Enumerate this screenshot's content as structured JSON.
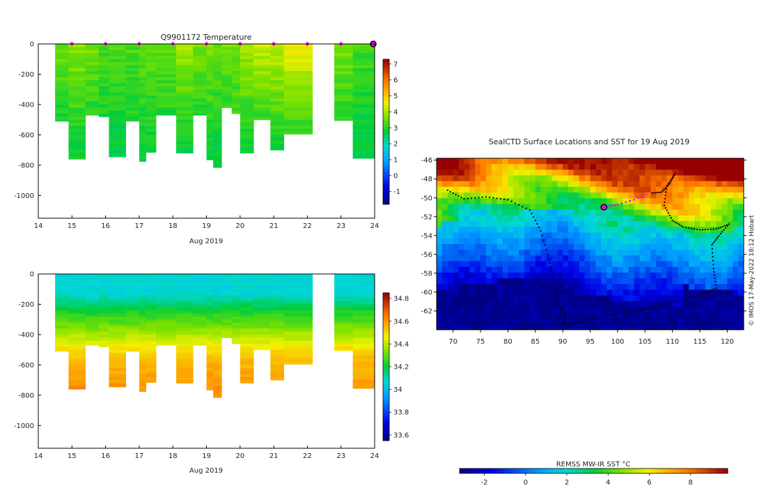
{
  "chart_data": [
    {
      "type": "heatmap",
      "title": "Q9901172  Temperature",
      "xlabel": "Aug 2019",
      "ylabel": "",
      "xlim": [
        14,
        24
      ],
      "ylim": [
        -1150,
        0
      ],
      "xticks": [
        "14",
        "15",
        "16",
        "17",
        "18",
        "19",
        "20",
        "21",
        "22",
        "23",
        "24"
      ],
      "yticks": [
        "0",
        "-200",
        "-400",
        "-600",
        "-800",
        "-1000"
      ],
      "colorbar": {
        "min": -1.8,
        "max": 7.3,
        "ticks": [
          "-1",
          "0",
          "1",
          "2",
          "3",
          "4",
          "5",
          "6",
          "7"
        ]
      },
      "marker_days": [
        15,
        16,
        17,
        18,
        19,
        20,
        21,
        22,
        23
      ],
      "profiles": [
        {
          "x0": 14.5,
          "x1": 14.9,
          "depth": 510,
          "t_top": 3.6,
          "t_bottom": 2.9
        },
        {
          "x0": 14.9,
          "x1": 15.4,
          "depth": 760,
          "t_top": 3.8,
          "t_bottom": 2.7
        },
        {
          "x0": 15.4,
          "x1": 15.8,
          "depth": 470,
          "t_top": 3.6,
          "t_bottom": 3.0
        },
        {
          "x0": 15.8,
          "x1": 16.1,
          "depth": 480,
          "t_top": 3.3,
          "t_bottom": 2.9
        },
        {
          "x0": 16.1,
          "x1": 16.6,
          "depth": 745,
          "t_top": 3.4,
          "t_bottom": 2.6
        },
        {
          "x0": 16.6,
          "x1": 17.0,
          "depth": 510,
          "t_top": 3.3,
          "t_bottom": 2.9
        },
        {
          "x0": 17.0,
          "x1": 17.2,
          "depth": 775,
          "t_top": 3.5,
          "t_bottom": 2.7
        },
        {
          "x0": 17.2,
          "x1": 17.5,
          "depth": 715,
          "t_top": 3.5,
          "t_bottom": 2.7
        },
        {
          "x0": 17.5,
          "x1": 18.1,
          "depth": 470,
          "t_top": 3.5,
          "t_bottom": 3.0
        },
        {
          "x0": 18.1,
          "x1": 18.6,
          "depth": 720,
          "t_top": 4.0,
          "t_bottom": 2.7
        },
        {
          "x0": 18.6,
          "x1": 19.0,
          "depth": 470,
          "t_top": 3.6,
          "t_bottom": 3.0
        },
        {
          "x0": 19.0,
          "x1": 19.2,
          "depth": 765,
          "t_top": 3.7,
          "t_bottom": 2.7
        },
        {
          "x0": 19.2,
          "x1": 19.45,
          "depth": 815,
          "t_top": 3.5,
          "t_bottom": 2.6
        },
        {
          "x0": 19.45,
          "x1": 19.75,
          "depth": 420,
          "t_top": 3.6,
          "t_bottom": 3.0
        },
        {
          "x0": 19.75,
          "x1": 20.0,
          "depth": 460,
          "t_top": 3.6,
          "t_bottom": 3.1
        },
        {
          "x0": 20.0,
          "x1": 20.4,
          "depth": 720,
          "t_top": 4.0,
          "t_bottom": 2.7
        },
        {
          "x0": 20.4,
          "x1": 20.9,
          "depth": 500,
          "t_top": 4.3,
          "t_bottom": 3.0
        },
        {
          "x0": 20.9,
          "x1": 21.3,
          "depth": 700,
          "t_top": 4.2,
          "t_bottom": 2.8
        },
        {
          "x0": 21.3,
          "x1": 22.15,
          "depth": 595,
          "t_top": 4.6,
          "t_bottom": 3.0
        },
        {
          "x0": 22.8,
          "x1": 23.35,
          "depth": 505,
          "t_top": 3.7,
          "t_bottom": 3.0
        },
        {
          "x0": 23.35,
          "x1": 24.0,
          "depth": 755,
          "t_top": 3.3,
          "t_bottom": 2.5
        }
      ]
    },
    {
      "type": "heatmap",
      "title": "",
      "xlabel": "Aug 2019",
      "ylabel": "",
      "xlim": [
        14,
        24
      ],
      "ylim": [
        -1150,
        0
      ],
      "xticks": [
        "14",
        "15",
        "16",
        "17",
        "18",
        "19",
        "20",
        "21",
        "22",
        "23",
        "24"
      ],
      "yticks": [
        "0",
        "-200",
        "-400",
        "-600",
        "-800",
        "-1000"
      ],
      "colorbar": {
        "min": 33.55,
        "max": 34.85,
        "ticks": [
          "33.6",
          "33.8",
          "34",
          "34.2",
          "34.4",
          "34.6",
          "34.8"
        ]
      },
      "profiles": [
        {
          "x0": 14.5,
          "x1": 14.9,
          "depth": 510
        },
        {
          "x0": 14.9,
          "x1": 15.4,
          "depth": 760
        },
        {
          "x0": 15.4,
          "x1": 15.8,
          "depth": 470
        },
        {
          "x0": 15.8,
          "x1": 16.1,
          "depth": 480
        },
        {
          "x0": 16.1,
          "x1": 16.6,
          "depth": 745
        },
        {
          "x0": 16.6,
          "x1": 17.0,
          "depth": 510
        },
        {
          "x0": 17.0,
          "x1": 17.2,
          "depth": 775
        },
        {
          "x0": 17.2,
          "x1": 17.5,
          "depth": 715
        },
        {
          "x0": 17.5,
          "x1": 18.1,
          "depth": 470
        },
        {
          "x0": 18.1,
          "x1": 18.6,
          "depth": 720
        },
        {
          "x0": 18.6,
          "x1": 19.0,
          "depth": 470
        },
        {
          "x0": 19.0,
          "x1": 19.2,
          "depth": 765
        },
        {
          "x0": 19.2,
          "x1": 19.45,
          "depth": 815
        },
        {
          "x0": 19.45,
          "x1": 19.75,
          "depth": 420
        },
        {
          "x0": 19.75,
          "x1": 20.0,
          "depth": 460
        },
        {
          "x0": 20.0,
          "x1": 20.4,
          "depth": 720
        },
        {
          "x0": 20.4,
          "x1": 20.9,
          "depth": 500
        },
        {
          "x0": 20.9,
          "x1": 21.3,
          "depth": 700
        },
        {
          "x0": 21.3,
          "x1": 22.15,
          "depth": 595
        },
        {
          "x0": 22.8,
          "x1": 23.35,
          "depth": 505
        },
        {
          "x0": 23.35,
          "x1": 24.0,
          "depth": 755
        }
      ]
    },
    {
      "type": "heatmap",
      "title": "SealCTD Surface Locations and SST for 19 Aug 2019",
      "xlim": [
        67,
        123
      ],
      "ylim": [
        -64,
        -45.8
      ],
      "xticks": [
        "70",
        "75",
        "80",
        "85",
        "90",
        "95",
        "100",
        "105",
        "110",
        "115",
        "120"
      ],
      "yticks": [
        "-46",
        "-48",
        "-50",
        "-52",
        "-54",
        "-56",
        "-58",
        "-60",
        "-62"
      ],
      "colorbar": {
        "label": "REMSS MW-IR SST °C",
        "min": -3.2,
        "max": 9.8,
        "ticks": [
          "-2",
          "0",
          "2",
          "4",
          "6",
          "8"
        ]
      },
      "credit": "© IMOS 17-May-2022 18:12 Hobart",
      "current_location": {
        "lon": 97.5,
        "lat": -51.0
      },
      "highlight_track": [
        [
          97.5,
          -51.0
        ],
        [
          100,
          -50.7
        ],
        [
          103,
          -50.2
        ],
        [
          106,
          -49.5
        ]
      ],
      "track": [
        [
          69,
          -49.2
        ],
        [
          72,
          -50.1
        ],
        [
          76,
          -49.9
        ],
        [
          80,
          -50.2
        ],
        [
          84,
          -51.3
        ],
        [
          86,
          -53.5
        ],
        [
          87.5,
          -56.5
        ],
        [
          88.5,
          -59
        ],
        [
          89,
          -61
        ],
        [
          90.5,
          -62.5
        ],
        [
          90.2,
          -63.5
        ],
        [
          93,
          -63.2
        ],
        [
          97,
          -62.6
        ],
        [
          101,
          -62.2
        ],
        [
          105,
          -61.8
        ],
        [
          109,
          -61.3
        ],
        [
          113,
          -60.6
        ],
        [
          116,
          -60.1
        ],
        [
          118,
          -59.6
        ],
        [
          117.5,
          -57.5
        ],
        [
          117.2,
          -55
        ],
        [
          118.5,
          -54
        ],
        [
          120.3,
          -52.8
        ],
        [
          118,
          -53.3
        ],
        [
          115,
          -53.4
        ],
        [
          112,
          -53.1
        ],
        [
          110,
          -52.4
        ],
        [
          108.5,
          -50.8
        ],
        [
          109,
          -48.7
        ],
        [
          110.5,
          -47.4
        ],
        [
          109.5,
          -48.5
        ],
        [
          108,
          -49.4
        ],
        [
          106,
          -49.5
        ]
      ]
    }
  ]
}
